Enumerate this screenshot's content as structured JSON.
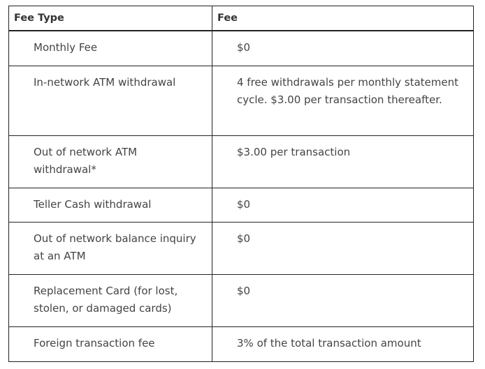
{
  "table": {
    "headers": [
      "Fee Type",
      "Fee"
    ],
    "rows": [
      {
        "type": "Monthly Fee",
        "fee": "$0"
      },
      {
        "type": "In-network ATM withdrawal",
        "fee": "4 free withdrawals per monthly statement cycle. $3.00 per transaction thereafter."
      },
      {
        "type": "Out of network ATM withdrawal*",
        "fee": "$3.00 per transaction"
      },
      {
        "type": "Teller Cash withdrawal",
        "fee": "$0"
      },
      {
        "type": "Out of network balance inquiry at an ATM",
        "fee": "$0"
      },
      {
        "type": "Replacement Card (for lost, stolen, or damaged cards)",
        "fee": "$0"
      },
      {
        "type": "Foreign transaction fee",
        "fee": "3% of the total transaction amount"
      }
    ]
  }
}
